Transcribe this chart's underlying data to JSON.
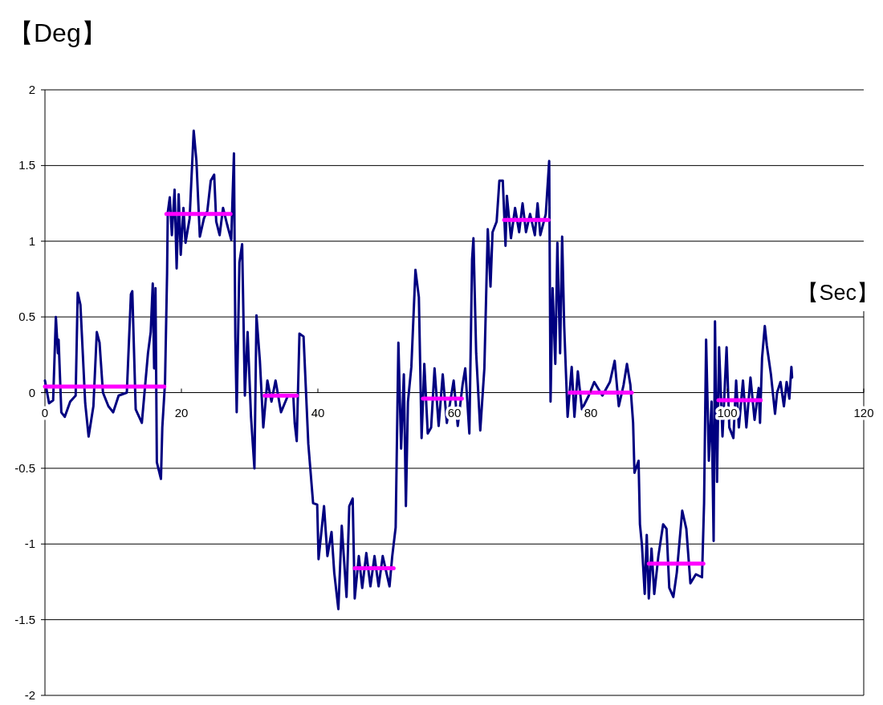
{
  "chart_data": {
    "type": "line",
    "xlabel": "【Sec】",
    "ylabel": "【Deg】",
    "xlim": [
      0,
      120
    ],
    "xticks": [
      0,
      20,
      40,
      60,
      80,
      100,
      120
    ],
    "ylim": [
      -2,
      2
    ],
    "yticks": [
      -2,
      -1.5,
      -1,
      -0.5,
      0,
      0.5,
      1,
      1.5,
      2
    ],
    "grid": "y",
    "series": [
      {
        "color": "#000080",
        "x": [
          0,
          0.6,
          1.2,
          1.6,
          1.9,
          2.0,
          2.4,
          2.9,
          3.7,
          4.5,
          4.8,
          5.2,
          5.9,
          6.4,
          7.1,
          7.6,
          8.0,
          8.5,
          9.3,
          10.0,
          10.8,
          12.0,
          12.6,
          12.8,
          13.3,
          14.2,
          15.1,
          15.5,
          15.8,
          16.0,
          16.2,
          16.4,
          17.0,
          17.2,
          17.6,
          17.9,
          18.0,
          18.3,
          18.6,
          19.0,
          19.3,
          19.6,
          19.9,
          20.3,
          20.6,
          21.2,
          21.8,
          22.2,
          22.7,
          23.3,
          23.8,
          24.3,
          24.8,
          25.1,
          25.6,
          26.1,
          26.7,
          27.3,
          27.7,
          27.9,
          28.1,
          28.5,
          28.9,
          29.3,
          29.7,
          30.2,
          30.7,
          31.0,
          31.5,
          32.0,
          32.6,
          33.2,
          33.8,
          34.6,
          35.6,
          36.4,
          36.6,
          36.9,
          37.3,
          37.9,
          38.6,
          39.3,
          39.9,
          40.1,
          40.9,
          41.4,
          42.0,
          42.4,
          43.0,
          43.5,
          44.2,
          44.6,
          45.1,
          45.4,
          46.0,
          46.5,
          47.1,
          47.7,
          48.3,
          48.9,
          49.5,
          50.5,
          50.9,
          51.4,
          51.8,
          52.2,
          52.6,
          52.9,
          53.2,
          53.7,
          54.3,
          54.8,
          55.2,
          55.6,
          56.1,
          56.6,
          57.1,
          57.7,
          58.3,
          58.9,
          59.9,
          60.5,
          61.2,
          61.6,
          62.2,
          62.6,
          62.8,
          63.2,
          63.8,
          64.4,
          64.9,
          65.3,
          65.6,
          66.2,
          66.6,
          67.1,
          67.5,
          67.7,
          68.3,
          68.9,
          69.5,
          70.0,
          70.5,
          71.1,
          71.8,
          72.2,
          72.6,
          73.4,
          73.9,
          74.1,
          74.4,
          74.8,
          75.1,
          75.5,
          75.8,
          76.1,
          76.6,
          77.2,
          77.6,
          78.1,
          78.7,
          79.7,
          80.5,
          81.7,
          82.8,
          83.5,
          84.1,
          84.8,
          85.3,
          85.8,
          86.2,
          86.4,
          87.0,
          87.2,
          87.5,
          87.9,
          88.2,
          88.5,
          88.9,
          89.3,
          89.9,
          90.6,
          91.1,
          91.5,
          92.1,
          92.6,
          93.4,
          94.0,
          94.6,
          95.4,
          96.3,
          96.6,
          96.9,
          97.3,
          97.7,
          98.0,
          98.2,
          98.5,
          98.8,
          99.3,
          99.9,
          100.3,
          100.9,
          101.3,
          101.7,
          102.3,
          102.8,
          103.4,
          104.0,
          104.6,
          104.8,
          105.1,
          105.5,
          105.8,
          106.4,
          107.0,
          107.3,
          107.8,
          108.3,
          108.7,
          109.1,
          109.4,
          109.5
        ],
        "values": [
          0.08,
          -0.07,
          -0.05,
          0.5,
          0.26,
          0.35,
          -0.13,
          -0.16,
          -0.06,
          -0.02,
          0.66,
          0.58,
          -0.07,
          -0.29,
          -0.09,
          0.4,
          0.33,
          0,
          -0.09,
          -0.13,
          -0.02,
          0,
          0.65,
          0.67,
          -0.11,
          -0.2,
          0.26,
          0.4,
          0.72,
          0.16,
          0.69,
          -0.46,
          -0.57,
          -0.23,
          0.07,
          0.79,
          1.19,
          1.29,
          1.04,
          1.34,
          0.82,
          1.31,
          0.91,
          1.22,
          0.99,
          1.15,
          1.73,
          1.53,
          1.03,
          1.15,
          1.2,
          1.4,
          1.44,
          1.13,
          1.04,
          1.22,
          1.11,
          1.01,
          1.58,
          0.37,
          -0.13,
          0.86,
          0.98,
          -0.02,
          0.4,
          -0.16,
          -0.5,
          0.51,
          0.21,
          -0.23,
          0.08,
          -0.06,
          0.08,
          -0.13,
          -0.02,
          -0.02,
          -0.2,
          -0.32,
          0.39,
          0.37,
          -0.34,
          -0.73,
          -0.74,
          -1.1,
          -0.75,
          -1.08,
          -0.92,
          -1.19,
          -1.43,
          -0.88,
          -1.35,
          -0.75,
          -0.7,
          -1.36,
          -1.08,
          -1.29,
          -1.06,
          -1.28,
          -1.08,
          -1.28,
          -1.08,
          -1.28,
          -1.08,
          -0.89,
          0.33,
          -0.37,
          0.12,
          -0.75,
          -0.06,
          0.17,
          0.81,
          0.63,
          -0.3,
          0.19,
          -0.27,
          -0.23,
          0.16,
          -0.22,
          0.12,
          -0.2,
          0.08,
          -0.22,
          0.05,
          0.16,
          -0.27,
          0.88,
          1.02,
          0.26,
          -0.25,
          0.16,
          1.08,
          0.7,
          1.06,
          1.13,
          1.4,
          1.4,
          0.97,
          1.3,
          1.02,
          1.22,
          1.06,
          1.25,
          1.06,
          1.18,
          1.04,
          1.25,
          1.04,
          1.18,
          1.53,
          -0.06,
          0.69,
          0.19,
          0.99,
          0.26,
          1.03,
          0.44,
          -0.16,
          0.17,
          -0.16,
          0.14,
          -0.11,
          -0.02,
          0.07,
          -0.02,
          0.07,
          0.21,
          -0.09,
          0.05,
          0.19,
          0.05,
          -0.2,
          -0.53,
          -0.45,
          -0.87,
          -1.01,
          -1.33,
          -0.94,
          -1.36,
          -1.03,
          -1.33,
          -1.08,
          -0.87,
          -0.9,
          -1.29,
          -1.35,
          -1.19,
          -0.78,
          -0.9,
          -1.26,
          -1.2,
          -1.22,
          -0.73,
          0.35,
          -0.45,
          -0.06,
          -0.98,
          0.47,
          -0.59,
          0.3,
          -0.29,
          0.3,
          -0.23,
          -0.3,
          0.08,
          -0.23,
          0.08,
          -0.23,
          0.1,
          -0.18,
          0.03,
          -0.2,
          0.23,
          0.44,
          0.31,
          0.12,
          -0.14,
          0,
          0.07,
          -0.09,
          0.07,
          -0.04,
          0.17,
          0.1
        ]
      },
      {
        "color": "#ff00ff",
        "x": [
          0,
          17.5
        ],
        "values": [
          0.04,
          0.04
        ]
      },
      {
        "color": "#ff00ff",
        "x": [
          17.8,
          27.2
        ],
        "values": [
          1.18,
          1.18
        ]
      },
      {
        "color": "#ff00ff",
        "x": [
          32.2,
          36.9
        ],
        "values": [
          -0.02,
          -0.02
        ]
      },
      {
        "color": "#ff00ff",
        "x": [
          45.4,
          51.1
        ],
        "values": [
          -1.16,
          -1.16
        ]
      },
      {
        "color": "#ff00ff",
        "x": [
          55.4,
          61.1
        ],
        "values": [
          -0.04,
          -0.04
        ]
      },
      {
        "color": "#ff00ff",
        "x": [
          67.3,
          73.8
        ],
        "values": [
          1.14,
          1.14
        ]
      },
      {
        "color": "#ff00ff",
        "x": [
          76.9,
          86.0
        ],
        "values": [
          0,
          0
        ]
      },
      {
        "color": "#ff00ff",
        "x": [
          88.5,
          96.5
        ],
        "values": [
          -1.13,
          -1.13
        ]
      },
      {
        "color": "#ff00ff",
        "x": [
          98.7,
          104.9
        ],
        "values": [
          -0.05,
          -0.05
        ]
      }
    ]
  }
}
